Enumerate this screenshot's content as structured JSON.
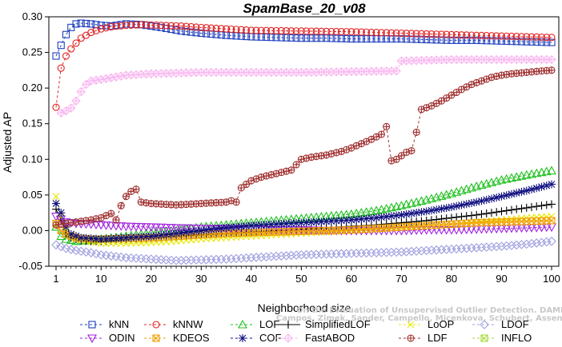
{
  "chart_data": {
    "type": "line",
    "title": "SpamBase_20_v08",
    "xlabel": "Neighborhood size",
    "ylabel": "Adjusted AP",
    "xlim": [
      1,
      100
    ],
    "ylim": [
      -0.05,
      0.3
    ],
    "xticks": [
      1,
      10,
      20,
      30,
      40,
      50,
      60,
      70,
      80,
      90,
      100
    ],
    "yticks": [
      -0.05,
      0.0,
      0.05,
      0.1,
      0.15,
      0.2,
      0.25,
      0.3
    ],
    "ytick_labels": [
      "-0.05",
      "0.00",
      "0.05",
      "0.10",
      "0.15",
      "0.20",
      "0.25",
      "0.30"
    ],
    "grid": false,
    "legend_position": "bottom",
    "credit": [
      "Campos, Zimek, Sander, Campello, Micenkova, Schubert, Assent, Houle",
      "On the Evaluation of Unsupervised Outlier Detection. DAMI, 2015."
    ],
    "series": [
      {
        "name": "kNN",
        "color": "#1f3fbf",
        "marker": "square",
        "line": "dash",
        "points": [
          [
            1,
            0.245
          ],
          [
            2,
            0.26
          ],
          [
            3,
            0.275
          ],
          [
            4,
            0.285
          ],
          [
            5,
            0.29
          ],
          [
            6,
            0.291
          ],
          [
            8,
            0.29
          ],
          [
            10,
            0.288
          ],
          [
            12,
            0.287
          ],
          [
            15,
            0.29
          ],
          [
            18,
            0.289
          ],
          [
            22,
            0.285
          ],
          [
            26,
            0.28
          ],
          [
            30,
            0.277
          ],
          [
            35,
            0.274
          ],
          [
            40,
            0.272
          ],
          [
            45,
            0.271
          ],
          [
            50,
            0.27
          ],
          [
            55,
            0.27
          ],
          [
            60,
            0.269
          ],
          [
            65,
            0.269
          ],
          [
            70,
            0.269
          ],
          [
            75,
            0.268
          ],
          [
            80,
            0.267
          ],
          [
            85,
            0.267
          ],
          [
            90,
            0.266
          ],
          [
            95,
            0.265
          ],
          [
            100,
            0.264
          ]
        ]
      },
      {
        "name": "kNNW",
        "color": "#e02020",
        "marker": "circle",
        "line": "dash",
        "points": [
          [
            1,
            0.173
          ],
          [
            2,
            0.228
          ],
          [
            3,
            0.245
          ],
          [
            4,
            0.255
          ],
          [
            5,
            0.263
          ],
          [
            6,
            0.27
          ],
          [
            8,
            0.278
          ],
          [
            10,
            0.283
          ],
          [
            12,
            0.286
          ],
          [
            15,
            0.288
          ],
          [
            18,
            0.289
          ],
          [
            22,
            0.288
          ],
          [
            26,
            0.287
          ],
          [
            30,
            0.285
          ],
          [
            35,
            0.283
          ],
          [
            40,
            0.281
          ],
          [
            50,
            0.28
          ],
          [
            60,
            0.279
          ],
          [
            70,
            0.277
          ],
          [
            80,
            0.275
          ],
          [
            90,
            0.273
          ],
          [
            100,
            0.271
          ]
        ]
      },
      {
        "name": "LOF",
        "color": "#20c020",
        "marker": "triangle",
        "line": "dash",
        "points": [
          [
            1,
            0.005
          ],
          [
            2,
            -0.008
          ],
          [
            3,
            -0.012
          ],
          [
            5,
            -0.015
          ],
          [
            7,
            -0.014
          ],
          [
            10,
            -0.012
          ],
          [
            15,
            -0.008
          ],
          [
            20,
            -0.003
          ],
          [
            25,
            0.0
          ],
          [
            30,
            0.005
          ],
          [
            35,
            0.008
          ],
          [
            40,
            0.011
          ],
          [
            45,
            0.014
          ],
          [
            50,
            0.017
          ],
          [
            55,
            0.02
          ],
          [
            60,
            0.023
          ],
          [
            65,
            0.028
          ],
          [
            70,
            0.035
          ],
          [
            75,
            0.043
          ],
          [
            80,
            0.052
          ],
          [
            85,
            0.062
          ],
          [
            90,
            0.071
          ],
          [
            95,
            0.078
          ],
          [
            100,
            0.084
          ]
        ]
      },
      {
        "name": "SimplifiedLOF",
        "color": "#000000",
        "marker": "plus",
        "line": "solid",
        "points": [
          [
            1,
            0.03
          ],
          [
            2,
            0.015
          ],
          [
            3,
            -0.005
          ],
          [
            4,
            -0.01
          ],
          [
            6,
            -0.014
          ],
          [
            8,
            -0.015
          ],
          [
            10,
            -0.015
          ],
          [
            15,
            -0.013
          ],
          [
            20,
            -0.01
          ],
          [
            25,
            -0.008
          ],
          [
            30,
            -0.006
          ],
          [
            35,
            -0.004
          ],
          [
            40,
            -0.002
          ],
          [
            45,
            0.0
          ],
          [
            50,
            0.002
          ],
          [
            55,
            0.004
          ],
          [
            60,
            0.006
          ],
          [
            65,
            0.008
          ],
          [
            70,
            0.011
          ],
          [
            75,
            0.014
          ],
          [
            80,
            0.018
          ],
          [
            85,
            0.022
          ],
          [
            90,
            0.027
          ],
          [
            95,
            0.032
          ],
          [
            100,
            0.037
          ]
        ]
      },
      {
        "name": "LoOP",
        "color": "#e8e800",
        "marker": "x",
        "line": "dash",
        "points": [
          [
            1,
            0.048
          ],
          [
            2,
            0.02
          ],
          [
            3,
            0.0
          ],
          [
            5,
            -0.012
          ],
          [
            8,
            -0.016
          ],
          [
            10,
            -0.018
          ],
          [
            15,
            -0.018
          ],
          [
            20,
            -0.017
          ],
          [
            25,
            -0.015
          ],
          [
            30,
            -0.012
          ],
          [
            35,
            -0.01
          ],
          [
            40,
            -0.008
          ],
          [
            45,
            -0.006
          ],
          [
            50,
            -0.004
          ],
          [
            55,
            -0.002
          ],
          [
            60,
            0.0
          ],
          [
            65,
            0.002
          ],
          [
            70,
            0.004
          ],
          [
            75,
            0.006
          ],
          [
            80,
            0.009
          ],
          [
            85,
            0.012
          ],
          [
            90,
            0.015
          ],
          [
            95,
            0.018
          ],
          [
            100,
            0.02
          ]
        ]
      },
      {
        "name": "LDOF",
        "color": "#a0a0e0",
        "marker": "diamond",
        "line": "dash",
        "points": [
          [
            1,
            -0.02
          ],
          [
            3,
            -0.025
          ],
          [
            5,
            -0.028
          ],
          [
            8,
            -0.031
          ],
          [
            10,
            -0.034
          ],
          [
            15,
            -0.038
          ],
          [
            20,
            -0.04
          ],
          [
            25,
            -0.042
          ],
          [
            30,
            -0.041
          ],
          [
            35,
            -0.04
          ],
          [
            40,
            -0.038
          ],
          [
            45,
            -0.036
          ],
          [
            50,
            -0.034
          ],
          [
            55,
            -0.033
          ],
          [
            60,
            -0.032
          ],
          [
            65,
            -0.031
          ],
          [
            70,
            -0.03
          ],
          [
            75,
            -0.028
          ],
          [
            80,
            -0.026
          ],
          [
            85,
            -0.024
          ],
          [
            90,
            -0.022
          ],
          [
            95,
            -0.019
          ],
          [
            100,
            -0.015
          ]
        ]
      },
      {
        "name": "ODIN",
        "color": "#a020e0",
        "marker": "triangle-down",
        "line": "dash",
        "points": [
          [
            1,
            0.02
          ],
          [
            2,
            0.016
          ],
          [
            3,
            0.012
          ],
          [
            5,
            0.01
          ],
          [
            8,
            0.009
          ],
          [
            10,
            0.008
          ],
          [
            15,
            0.006
          ],
          [
            20,
            0.005
          ],
          [
            25,
            0.004
          ],
          [
            30,
            0.003
          ],
          [
            35,
            0.003
          ],
          [
            40,
            0.002
          ],
          [
            45,
            0.001
          ],
          [
            50,
            0.001
          ],
          [
            55,
            0.0
          ],
          [
            60,
            0.0
          ],
          [
            65,
            0.0
          ],
          [
            70,
            0.0
          ],
          [
            75,
            0.001
          ],
          [
            80,
            0.001
          ],
          [
            85,
            0.002
          ],
          [
            90,
            0.003
          ],
          [
            95,
            0.004
          ],
          [
            100,
            0.005
          ]
        ]
      },
      {
        "name": "KDEOS",
        "color": "#f0a000",
        "marker": "boxx",
        "line": "dash",
        "points": [
          [
            1,
            0.01
          ],
          [
            2,
            0.0
          ],
          [
            3,
            -0.005
          ],
          [
            5,
            -0.01
          ],
          [
            8,
            -0.012
          ],
          [
            10,
            -0.012
          ],
          [
            15,
            -0.011
          ],
          [
            20,
            -0.01
          ],
          [
            25,
            -0.008
          ],
          [
            30,
            -0.006
          ],
          [
            35,
            -0.004
          ],
          [
            40,
            -0.003
          ],
          [
            45,
            -0.002
          ],
          [
            50,
            -0.001
          ],
          [
            55,
            0.0
          ],
          [
            60,
            0.001
          ],
          [
            65,
            0.003
          ],
          [
            70,
            0.005
          ],
          [
            75,
            0.007
          ],
          [
            80,
            0.009
          ],
          [
            85,
            0.011
          ],
          [
            90,
            0.012
          ],
          [
            95,
            0.013
          ],
          [
            100,
            0.014
          ]
        ]
      },
      {
        "name": "COF",
        "color": "#101080",
        "marker": "asterisk",
        "line": "dash",
        "points": [
          [
            1,
            0.038
          ],
          [
            2,
            0.025
          ],
          [
            3,
            0.005
          ],
          [
            4,
            -0.005
          ],
          [
            6,
            -0.01
          ],
          [
            10,
            -0.012
          ],
          [
            15,
            -0.01
          ],
          [
            20,
            -0.008
          ],
          [
            25,
            -0.004
          ],
          [
            30,
            0.0
          ],
          [
            35,
            0.004
          ],
          [
            40,
            0.007
          ],
          [
            45,
            0.009
          ],
          [
            50,
            0.011
          ],
          [
            55,
            0.013
          ],
          [
            60,
            0.015
          ],
          [
            65,
            0.018
          ],
          [
            70,
            0.022
          ],
          [
            75,
            0.027
          ],
          [
            80,
            0.033
          ],
          [
            85,
            0.04
          ],
          [
            90,
            0.048
          ],
          [
            95,
            0.056
          ],
          [
            100,
            0.065
          ]
        ]
      },
      {
        "name": "FastABOD",
        "color": "#f8b8f0",
        "marker": "diamond-plus",
        "line": "dash",
        "points": [
          [
            2,
            0.165
          ],
          [
            3,
            0.168
          ],
          [
            4,
            0.172
          ],
          [
            5,
            0.182
          ],
          [
            6,
            0.195
          ],
          [
            7,
            0.205
          ],
          [
            8,
            0.21
          ],
          [
            10,
            0.212
          ],
          [
            15,
            0.218
          ],
          [
            20,
            0.22
          ],
          [
            30,
            0.222
          ],
          [
            40,
            0.222
          ],
          [
            50,
            0.222
          ],
          [
            60,
            0.223
          ],
          [
            69,
            0.224
          ],
          [
            70,
            0.238
          ],
          [
            75,
            0.239
          ],
          [
            80,
            0.24
          ],
          [
            90,
            0.24
          ],
          [
            100,
            0.24
          ]
        ]
      },
      {
        "name": "LDF",
        "color": "#a03030",
        "marker": "circle-plus",
        "line": "dash",
        "points": [
          [
            1,
            0.008
          ],
          [
            3,
            0.01
          ],
          [
            5,
            0.012
          ],
          [
            8,
            0.015
          ],
          [
            10,
            0.018
          ],
          [
            12,
            0.024
          ],
          [
            13,
            0.015
          ],
          [
            14,
            0.035
          ],
          [
            15,
            0.048
          ],
          [
            16,
            0.055
          ],
          [
            17,
            0.058
          ],
          [
            18,
            0.04
          ],
          [
            20,
            0.038
          ],
          [
            25,
            0.036
          ],
          [
            30,
            0.038
          ],
          [
            35,
            0.04
          ],
          [
            36,
            0.042
          ],
          [
            37,
            0.04
          ],
          [
            38,
            0.06
          ],
          [
            40,
            0.07
          ],
          [
            42,
            0.075
          ],
          [
            45,
            0.08
          ],
          [
            48,
            0.085
          ],
          [
            50,
            0.1
          ],
          [
            52,
            0.103
          ],
          [
            55,
            0.106
          ],
          [
            58,
            0.111
          ],
          [
            60,
            0.116
          ],
          [
            62,
            0.122
          ],
          [
            64,
            0.128
          ],
          [
            66,
            0.135
          ],
          [
            67,
            0.146
          ],
          [
            68,
            0.098
          ],
          [
            69,
            0.1
          ],
          [
            70,
            0.105
          ],
          [
            71,
            0.11
          ],
          [
            72,
            0.112
          ],
          [
            73,
            0.138
          ],
          [
            74,
            0.17
          ],
          [
            76,
            0.175
          ],
          [
            78,
            0.182
          ],
          [
            80,
            0.19
          ],
          [
            82,
            0.198
          ],
          [
            84,
            0.205
          ],
          [
            86,
            0.21
          ],
          [
            88,
            0.215
          ],
          [
            90,
            0.218
          ],
          [
            92,
            0.22
          ],
          [
            95,
            0.222
          ],
          [
            98,
            0.224
          ],
          [
            100,
            0.225
          ]
        ]
      }
    ],
    "legend_rows": [
      [
        "kNN",
        "kNNW",
        "LOF",
        "SimplifiedLOF",
        "LoOP",
        "LDOF"
      ],
      [
        "ODIN",
        "KDEOS",
        "COF",
        "FastABOD",
        "LDF",
        "INFLO"
      ]
    ],
    "extra_legend": {
      "name": "INFLO",
      "color": "#a8d838",
      "marker": "boxx"
    }
  }
}
